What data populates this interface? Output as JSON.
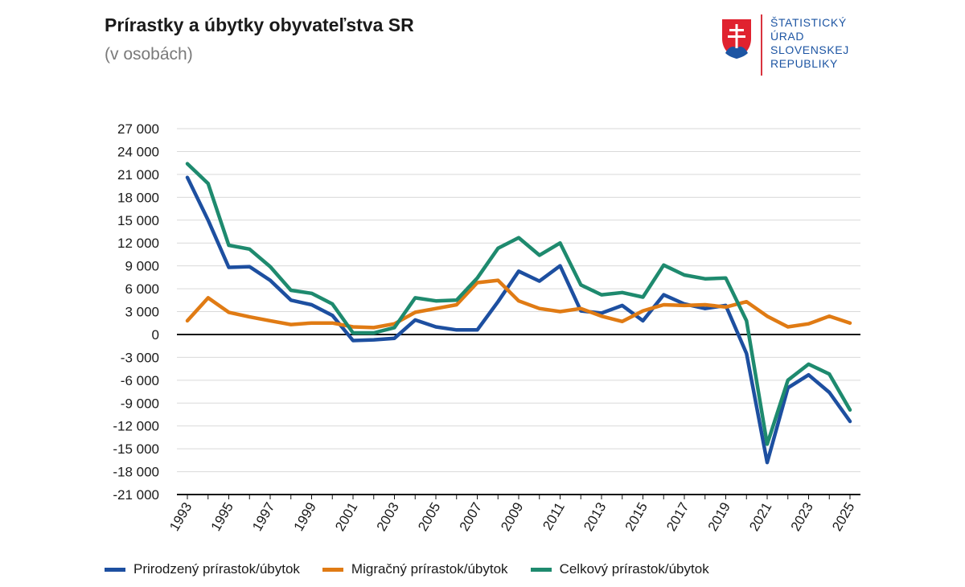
{
  "header": {
    "title": "Prírastky a úbytky obyvateľstva SR",
    "subtitle": "(v osobách)"
  },
  "logo": {
    "lines": [
      "ŠTATISTICKÝ",
      "ÚRAD",
      "SLOVENSKEJ",
      "REPUBLIKY"
    ]
  },
  "colors": {
    "natural": "#1d4fa0",
    "migration": "#e07b14",
    "total": "#1e8a6e"
  },
  "chart_data": {
    "type": "line",
    "title": "Prírastky a úbytky obyvateľstva SR",
    "subtitle": "(v osobách)",
    "xlabel": "",
    "ylabel": "",
    "ylim": [
      -21000,
      27000
    ],
    "yticks": [
      27000,
      24000,
      21000,
      18000,
      15000,
      12000,
      9000,
      6000,
      3000,
      0,
      -3000,
      -6000,
      -9000,
      -12000,
      -15000,
      -18000,
      -21000
    ],
    "ytick_labels": [
      "27 000",
      "24 000",
      "21 000",
      "18 000",
      "15 000",
      "12 000",
      "9 000",
      "6 000",
      "3 000",
      "0",
      "-3 000",
      "-6 000",
      "-9 000",
      "-12 000",
      "-15 000",
      "-18 000",
      "-21 000"
    ],
    "x": [
      1993,
      1994,
      1995,
      1996,
      1997,
      1998,
      1999,
      2000,
      2001,
      2002,
      2003,
      2004,
      2005,
      2006,
      2007,
      2008,
      2009,
      2010,
      2011,
      2012,
      2013,
      2014,
      2015,
      2016,
      2017,
      2018,
      2019,
      2020,
      2021,
      2022,
      2023,
      2024,
      2025
    ],
    "xtick_labels": [
      "1993",
      "1995",
      "1997",
      "1999",
      "2001",
      "2003",
      "2005",
      "2007",
      "2009",
      "2011",
      "2013",
      "2015",
      "2017",
      "2019",
      "2021",
      "2023",
      "2025"
    ],
    "grid": true,
    "legend_position": "bottom",
    "series": [
      {
        "name": "Prirodzený prírastok/úbytok",
        "values": [
          20600,
          15000,
          8800,
          8900,
          7100,
          4500,
          3900,
          2500,
          -800,
          -700,
          -500,
          1900,
          1000,
          600,
          600,
          4300,
          8300,
          7000,
          9000,
          3100,
          2800,
          3800,
          1800,
          5200,
          4000,
          3400,
          3800,
          -2500,
          -16800,
          -7000,
          -5300,
          -7600,
          -11400
        ]
      },
      {
        "name": "Migračný prírastok/úbytok",
        "values": [
          1800,
          4800,
          2900,
          2300,
          1800,
          1300,
          1500,
          1500,
          1000,
          900,
          1400,
          2900,
          3400,
          3900,
          6800,
          7100,
          4400,
          3400,
          3000,
          3400,
          2400,
          1700,
          3100,
          3900,
          3800,
          3900,
          3600,
          4300,
          2400,
          1000,
          1400,
          2400,
          1500
        ]
      },
      {
        "name": "Celkový prírastok/úbytok",
        "values": [
          22400,
          19800,
          11700,
          11200,
          8900,
          5800,
          5400,
          4000,
          200,
          200,
          900,
          4800,
          4400,
          4500,
          7400,
          11300,
          12700,
          10400,
          12000,
          6500,
          5200,
          5500,
          4900,
          9100,
          7800,
          7300,
          7400,
          1800,
          -14400,
          -6000,
          -3900,
          -5200,
          -9900
        ]
      }
    ]
  }
}
